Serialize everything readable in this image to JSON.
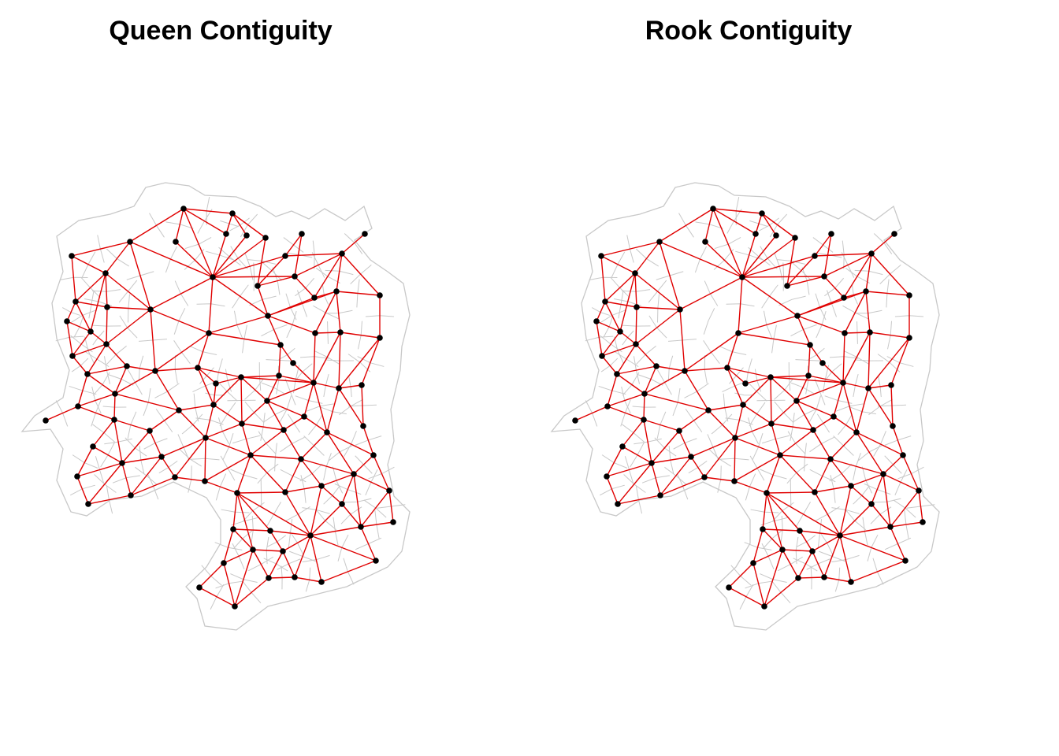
{
  "panels": [
    {
      "id": "queen",
      "title": "Queen Contiguity"
    },
    {
      "id": "rook",
      "title": "Rook Contiguity"
    }
  ],
  "colors": {
    "background": "#ffffff",
    "boundary": "#c8c8c8",
    "link": "#e00000",
    "node": "#000000",
    "title": "#000000"
  }
}
